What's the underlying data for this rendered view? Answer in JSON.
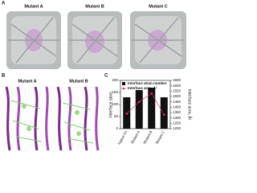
{
  "panel_labels": [
    "A",
    "B",
    "C"
  ],
  "panel_a": {
    "captions": [
      "Mutant A",
      "Mutant B",
      "Mutant C"
    ]
  },
  "panel_b": {
    "captions": [
      "Mutant A",
      "Mutant B"
    ]
  },
  "chart_data": {
    "type": "bar",
    "categories": [
      "Native Fn",
      "Mutant A",
      "Mutant B",
      "Mutant C"
    ],
    "series": [
      {
        "name": "Interface atom number",
        "color": "#111111",
        "type": "bar",
        "values": [
          130,
          160,
          170,
          130
        ]
      },
      {
        "name": "Interface area, Å²",
        "color": "#e0305a",
        "type": "line",
        "axis": "y2",
        "values": [
          1340,
          1450,
          1530,
          1330
        ]
      }
    ],
    "ylabel": "Interface atom",
    "y2label": "Interface area, Å²",
    "ylim": [
      0,
      200
    ],
    "yticks": [
      0,
      50,
      100,
      150,
      200
    ],
    "y2lim": [
      1200,
      1650
    ],
    "y2ticks": [
      1200,
      1250,
      1300,
      1350,
      1400,
      1450,
      1500,
      1550,
      1600,
      1650
    ]
  }
}
